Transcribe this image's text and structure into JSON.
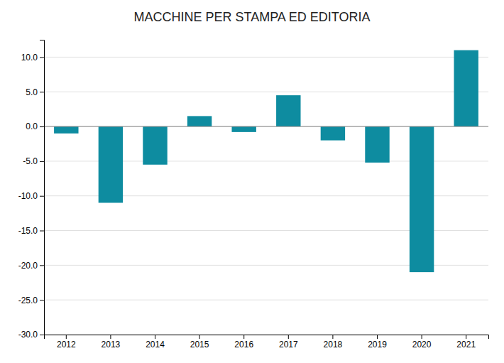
{
  "chart_data": {
    "type": "bar",
    "title": "MACCHINE PER STAMPA ED EDITORIA",
    "categories": [
      "2012",
      "2013",
      "2014",
      "2015",
      "2016",
      "2017",
      "2018",
      "2019",
      "2020",
      "2021"
    ],
    "values": [
      -1.0,
      -11.0,
      -5.5,
      1.5,
      -0.8,
      4.5,
      -2.0,
      -5.2,
      -21.0,
      11.0
    ],
    "color": "#0e8ca0",
    "ylim": [
      -30,
      12.5
    ],
    "yticks": [
      {
        "value": -30,
        "label": "-30.0"
      },
      {
        "value": -25,
        "label": "-25.0"
      },
      {
        "value": -20,
        "label": "-20.0"
      },
      {
        "value": -15,
        "label": "-15.0"
      },
      {
        "value": -10,
        "label": "-10.0"
      },
      {
        "value": -5,
        "label": "-5.0"
      },
      {
        "value": 0,
        "label": "0.0"
      },
      {
        "value": 5,
        "label": "5.0"
      },
      {
        "value": 10,
        "label": "10.0"
      }
    ],
    "grid": true
  }
}
